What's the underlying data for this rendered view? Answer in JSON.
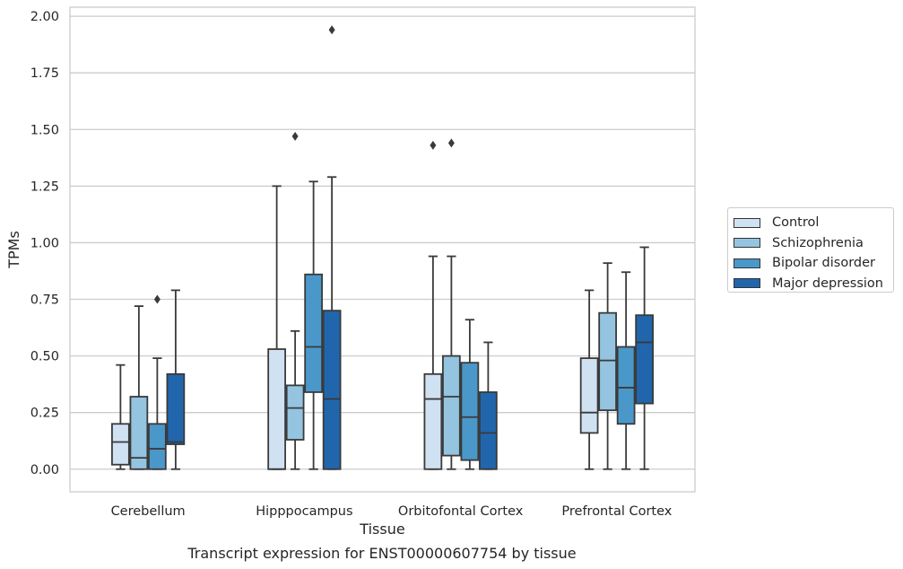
{
  "chart_data": {
    "type": "box",
    "title": "",
    "caption": "Transcript expression for ENST00000607754 by tissue",
    "xlabel": "Tissue",
    "ylabel": "TPMs",
    "ylim": [
      -0.1,
      2.04
    ],
    "yticks": [
      0.0,
      0.25,
      0.5,
      0.75,
      1.0,
      1.25,
      1.5,
      1.75,
      2.0
    ],
    "ytick_labels": [
      "0.00",
      "0.25",
      "0.50",
      "0.75",
      "1.00",
      "1.25",
      "1.50",
      "1.75",
      "2.00"
    ],
    "categories": [
      "Cerebellum",
      "Hipppocampus",
      "Orbitofontal Cortex",
      "Prefrontal Cortex"
    ],
    "grid": "horizontal",
    "legend_position": "right-center",
    "series": [
      {
        "name": "Control",
        "color": "#d0e1f2",
        "boxes": [
          {
            "whislo": 0.0,
            "q1": 0.02,
            "med": 0.12,
            "q3": 0.2,
            "whishi": 0.46,
            "fliers": []
          },
          {
            "whislo": 0.0,
            "q1": 0.0,
            "med": 0.0,
            "q3": 0.53,
            "whishi": 1.25,
            "fliers": []
          },
          {
            "whislo": 0.0,
            "q1": 0.0,
            "med": 0.31,
            "q3": 0.42,
            "whishi": 0.94,
            "fliers": [
              1.43
            ]
          },
          {
            "whislo": 0.0,
            "q1": 0.16,
            "med": 0.25,
            "q3": 0.49,
            "whishi": 0.79,
            "fliers": []
          }
        ]
      },
      {
        "name": "Schizophrenia",
        "color": "#94c4df",
        "boxes": [
          {
            "whislo": 0.0,
            "q1": 0.0,
            "med": 0.05,
            "q3": 0.32,
            "whishi": 0.72,
            "fliers": []
          },
          {
            "whislo": 0.0,
            "q1": 0.13,
            "med": 0.27,
            "q3": 0.37,
            "whishi": 0.61,
            "fliers": [
              1.47
            ]
          },
          {
            "whislo": 0.0,
            "q1": 0.06,
            "med": 0.32,
            "q3": 0.5,
            "whishi": 0.94,
            "fliers": [
              1.44
            ]
          },
          {
            "whislo": 0.0,
            "q1": 0.26,
            "med": 0.48,
            "q3": 0.69,
            "whishi": 0.91,
            "fliers": []
          }
        ]
      },
      {
        "name": "Bipolar disorder",
        "color": "#4a98c9",
        "boxes": [
          {
            "whislo": 0.0,
            "q1": 0.0,
            "med": 0.09,
            "q3": 0.2,
            "whishi": 0.49,
            "fliers": [
              0.75
            ]
          },
          {
            "whislo": 0.0,
            "q1": 0.34,
            "med": 0.54,
            "q3": 0.86,
            "whishi": 1.27,
            "fliers": []
          },
          {
            "whislo": 0.0,
            "q1": 0.04,
            "med": 0.23,
            "q3": 0.47,
            "whishi": 0.66,
            "fliers": []
          },
          {
            "whislo": 0.0,
            "q1": 0.2,
            "med": 0.36,
            "q3": 0.54,
            "whishi": 0.87,
            "fliers": []
          }
        ]
      },
      {
        "name": "Major depression",
        "color": "#2166ac",
        "boxes": [
          {
            "whislo": 0.0,
            "q1": 0.11,
            "med": 0.12,
            "q3": 0.42,
            "whishi": 0.79,
            "fliers": []
          },
          {
            "whislo": 0.0,
            "q1": 0.0,
            "med": 0.31,
            "q3": 0.7,
            "whishi": 1.29,
            "fliers": [
              1.94
            ]
          },
          {
            "whislo": 0.0,
            "q1": 0.0,
            "med": 0.16,
            "q3": 0.34,
            "whishi": 0.56,
            "fliers": []
          },
          {
            "whislo": 0.0,
            "q1": 0.29,
            "med": 0.56,
            "q3": 0.68,
            "whishi": 0.98,
            "fliers": []
          }
        ]
      }
    ]
  }
}
